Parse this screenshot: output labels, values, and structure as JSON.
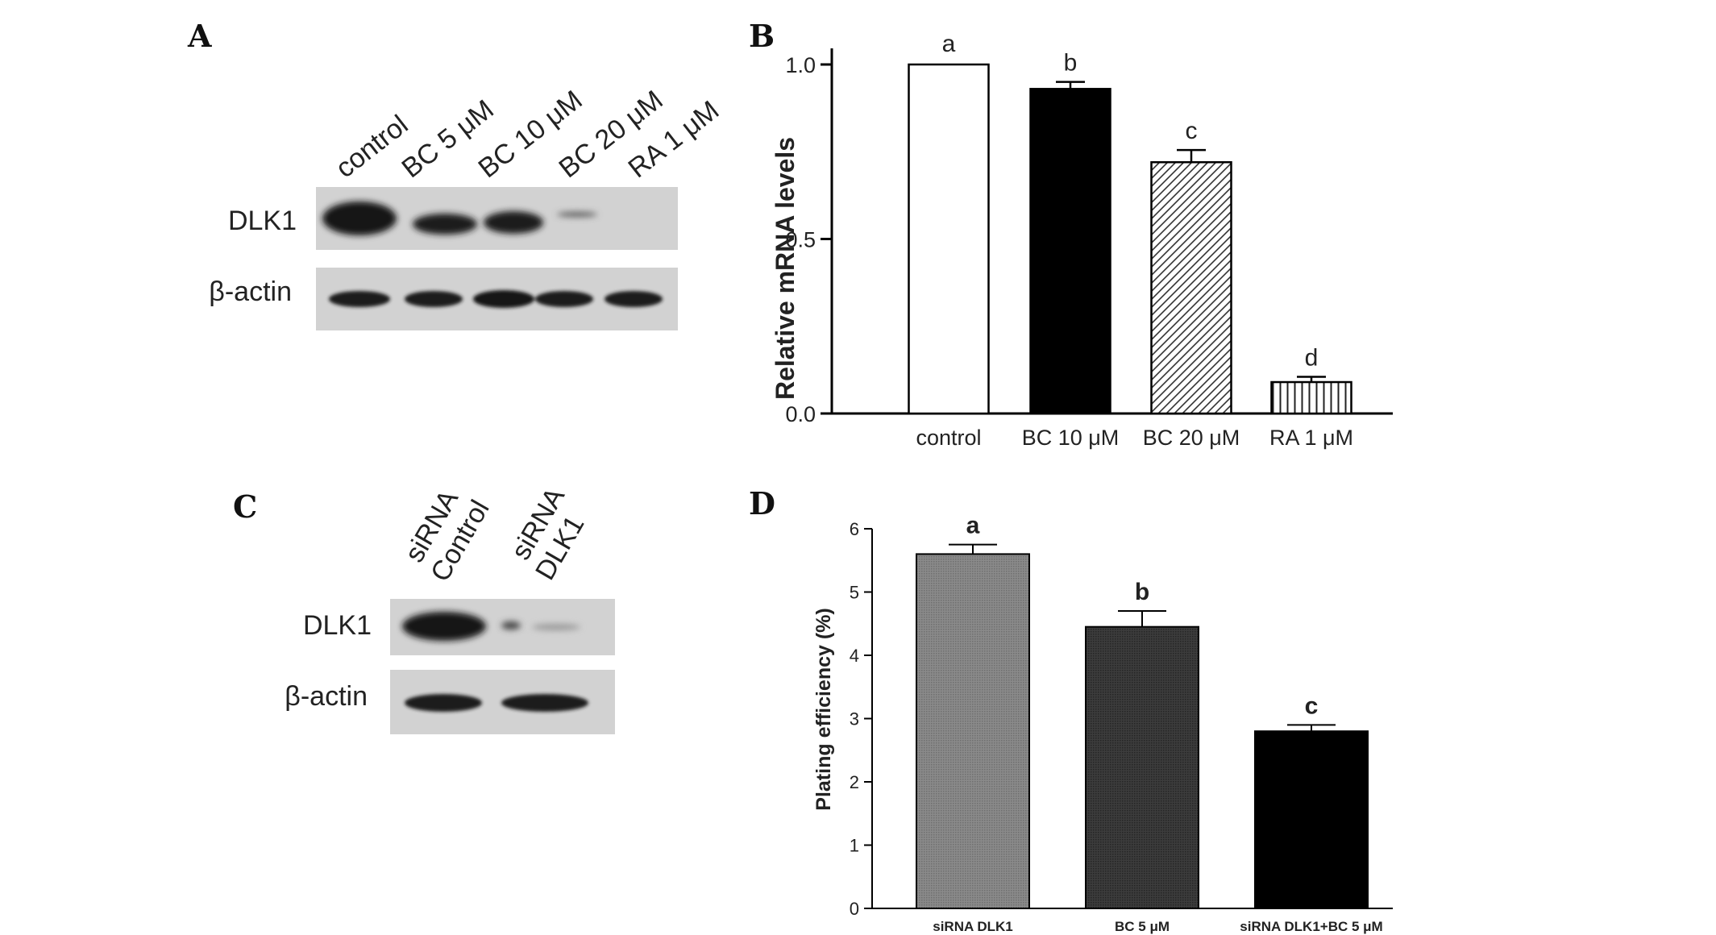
{
  "panels": {
    "a": "A",
    "b": "B",
    "c": "C",
    "d": "D"
  },
  "blot_a": {
    "lanes": [
      "control",
      "BC 5 μM",
      "BC 10 μM",
      "BC 20 μM",
      "RA 1 μM"
    ],
    "rows": [
      "DLK1",
      "β-actin"
    ]
  },
  "blot_c": {
    "lanes": [
      [
        "siRNA",
        "Control"
      ],
      [
        "siRNA",
        "DLK1"
      ]
    ],
    "rows": [
      "DLK1",
      "β-actin"
    ]
  },
  "chart_data": [
    {
      "type": "bar",
      "categories": [
        "control",
        "BC 10 μM",
        "BC 20 μM",
        "RA 1 μM"
      ],
      "values": [
        1.0,
        0.93,
        0.72,
        0.09
      ],
      "errors": [
        0.0,
        0.02,
        0.035,
        0.015
      ],
      "labels": [
        "a",
        "b",
        "c",
        "d"
      ],
      "fills": [
        "white",
        "black",
        "diagonal-hatch",
        "vertical-hatch"
      ],
      "ylabel": "Relative mRNA levels",
      "ylim": [
        0,
        1.0
      ],
      "yticks": [
        "0.0",
        "0.5",
        "1.0"
      ]
    },
    {
      "type": "bar",
      "categories": [
        "siRNA DLK1",
        "BC 5 μM",
        "siRNA DLK1+BC 5 μM"
      ],
      "values": [
        5.6,
        4.45,
        2.8
      ],
      "errors": [
        0.15,
        0.25,
        0.1
      ],
      "labels": [
        "a",
        "b",
        "c"
      ],
      "colors": [
        "#7f7f7f",
        "#3a3a3a",
        "#000000"
      ],
      "ylabel": "Plating efficiency (%)",
      "ylim": [
        0,
        6
      ],
      "yticks": [
        "0",
        "1",
        "2",
        "3",
        "4",
        "5",
        "6"
      ]
    }
  ]
}
